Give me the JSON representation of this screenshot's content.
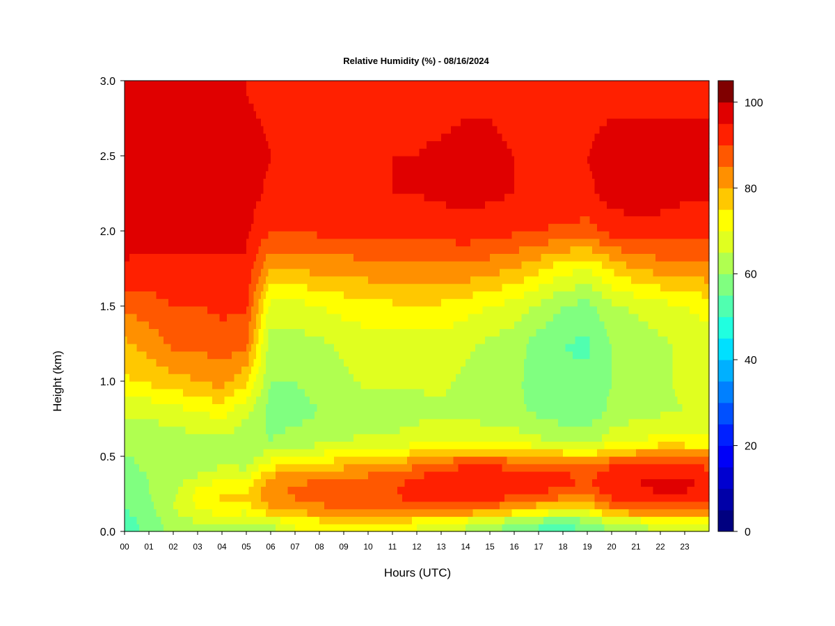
{
  "chart_data": {
    "type": "heatmap",
    "title": "Relative Humidity (%) - 08/16/2024",
    "xlabel": "Hours (UTC)",
    "ylabel": "Height (km)",
    "xlim": [
      0,
      24
    ],
    "ylim": [
      0.0,
      3.0
    ],
    "x_ticks": [
      "00",
      "01",
      "02",
      "03",
      "04",
      "05",
      "06",
      "07",
      "08",
      "09",
      "10",
      "11",
      "12",
      "13",
      "14",
      "15",
      "16",
      "17",
      "18",
      "19",
      "20",
      "21",
      "22",
      "23"
    ],
    "y_ticks": [
      "0.0",
      "0.5",
      "1.0",
      "1.5",
      "2.0",
      "2.5",
      "3.0"
    ],
    "colorbar": {
      "min": 0,
      "max": 100,
      "step": 5,
      "tick_labels": [
        "0",
        "20",
        "40",
        "60",
        "80",
        "100"
      ],
      "colors": [
        "#000080",
        "#0000a8",
        "#0000d0",
        "#0000f8",
        "#0020ff",
        "#0050ff",
        "#0080ff",
        "#00b0ff",
        "#00e0ff",
        "#20ffe0",
        "#50ffb0",
        "#80ff80",
        "#b0ff50",
        "#e0ff20",
        "#ffff00",
        "#ffc800",
        "#ff9000",
        "#ff5800",
        "#ff2000",
        "#e00000",
        "#800000"
      ]
    },
    "row_heights_km": [
      0.05,
      0.15,
      0.25,
      0.35,
      0.45,
      0.6,
      0.8,
      1.0,
      1.25,
      1.5,
      1.75,
      2.0,
      2.25,
      2.5,
      2.75,
      2.9
    ],
    "hourly_profiles": [
      {
        "hour": 0,
        "rh": [
          52,
          55,
          57,
          58,
          59,
          61,
          66,
          74,
          79,
          86,
          94,
          98,
          99,
          99,
          98,
          97
        ]
      },
      {
        "hour": 1,
        "rh": [
          57,
          58,
          60,
          60,
          61,
          62,
          66,
          76,
          82,
          88,
          93,
          97,
          98,
          98,
          97,
          96
        ]
      },
      {
        "hour": 2,
        "rh": [
          62,
          65,
          64,
          63,
          62,
          62,
          68,
          78,
          86,
          90,
          94,
          96,
          97,
          97,
          96,
          95
        ]
      },
      {
        "hour": 3,
        "rh": [
          64,
          70,
          72,
          66,
          62,
          63,
          70,
          80,
          86,
          90,
          94,
          96,
          97,
          97,
          96,
          95
        ]
      },
      {
        "hour": 4,
        "rh": [
          65,
          73,
          76,
          70,
          64,
          64,
          72,
          82,
          88,
          91,
          94,
          96,
          97,
          97,
          96,
          95
        ]
      },
      {
        "hour": 5,
        "rh": [
          63,
          72,
          76,
          70,
          63,
          61,
          66,
          76,
          86,
          91,
          94,
          96,
          97,
          97,
          96,
          95
        ]
      },
      {
        "hour": 6,
        "rh": [
          64,
          80,
          84,
          82,
          72,
          60,
          58,
          60,
          62,
          68,
          80,
          90,
          94,
          95,
          94,
          93
        ]
      },
      {
        "hour": 7,
        "rh": [
          70,
          82,
          86,
          84,
          75,
          62,
          58,
          60,
          63,
          68,
          80,
          90,
          94,
          95,
          94,
          93
        ]
      },
      {
        "hour": 8,
        "rh": [
          72,
          84,
          87,
          85,
          76,
          63,
          60,
          62,
          64,
          70,
          82,
          91,
          94,
          95,
          94,
          93
        ]
      },
      {
        "hour": 9,
        "rh": [
          72,
          85,
          88,
          86,
          78,
          65,
          62,
          64,
          66,
          72,
          82,
          91,
          94,
          95,
          94,
          93
        ]
      },
      {
        "hour": 10,
        "rh": [
          73,
          86,
          89,
          87,
          79,
          66,
          63,
          66,
          68,
          73,
          83,
          91,
          94,
          95,
          94,
          93
        ]
      },
      {
        "hour": 11,
        "rh": [
          73,
          87,
          90,
          88,
          80,
          66,
          62,
          66,
          68,
          74,
          84,
          92,
          95,
          95,
          94,
          93
        ]
      },
      {
        "hour": 12,
        "rh": [
          70,
          88,
          92,
          91,
          84,
          68,
          63,
          66,
          68,
          74,
          84,
          92,
          95,
          95,
          94,
          93
        ]
      },
      {
        "hour": 13,
        "rh": [
          68,
          88,
          94,
          93,
          87,
          70,
          64,
          66,
          68,
          74,
          84,
          92,
          96,
          96,
          94,
          93
        ]
      },
      {
        "hour": 14,
        "rh": [
          65,
          86,
          95,
          95,
          89,
          70,
          63,
          64,
          66,
          72,
          84,
          93,
          97,
          97,
          95,
          93
        ]
      },
      {
        "hour": 15,
        "rh": [
          62,
          84,
          94,
          95,
          89,
          69,
          62,
          62,
          64,
          70,
          82,
          92,
          96,
          96,
          95,
          93
        ]
      },
      {
        "hour": 16,
        "rh": [
          58,
          80,
          92,
          94,
          88,
          68,
          61,
          61,
          62,
          68,
          80,
          91,
          95,
          95,
          94,
          93
        ]
      },
      {
        "hour": 17,
        "rh": [
          55,
          76,
          90,
          93,
          87,
          66,
          59,
          58,
          58,
          64,
          76,
          90,
          94,
          95,
          94,
          93
        ]
      },
      {
        "hour": 18,
        "rh": [
          54,
          74,
          88,
          92,
          86,
          64,
          57,
          56,
          55,
          60,
          72,
          89,
          94,
          95,
          94,
          93
        ]
      },
      {
        "hour": 19,
        "rh": [
          56,
          74,
          86,
          90,
          84,
          62,
          57,
          56,
          54,
          58,
          70,
          88,
          94,
          95,
          94,
          93
        ]
      },
      {
        "hour": 20,
        "rh": [
          62,
          84,
          92,
          94,
          89,
          68,
          61,
          60,
          60,
          64,
          76,
          92,
          97,
          97,
          95,
          93
        ]
      },
      {
        "hour": 21,
        "rh": [
          64,
          86,
          94,
          95,
          90,
          70,
          63,
          62,
          62,
          66,
          80,
          93,
          98,
          97,
          95,
          93
        ]
      },
      {
        "hour": 22,
        "rh": [
          66,
          88,
          95,
          96,
          91,
          72,
          64,
          64,
          64,
          68,
          82,
          93,
          97,
          97,
          95,
          93
        ]
      },
      {
        "hour": 23,
        "rh": [
          68,
          88,
          95,
          96,
          90,
          72,
          65,
          66,
          66,
          70,
          82,
          92,
          96,
          96,
          95,
          93
        ]
      },
      {
        "hour": 24,
        "rh": [
          70,
          86,
          93,
          94,
          88,
          72,
          66,
          68,
          68,
          72,
          84,
          92,
          96,
          96,
          95,
          93
        ]
      }
    ]
  }
}
